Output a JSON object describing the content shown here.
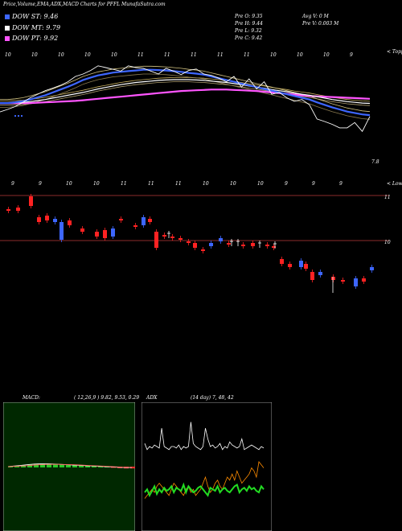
{
  "header": {
    "title": "Price,Volume,EMA,ADX,MACD Charts for PFFL MunafaSutra.com"
  },
  "legend": [
    {
      "label": "DOW ST: 9.46",
      "color": "#3d66ff"
    },
    {
      "label": "DOW MT: 9.79",
      "color": "#ffffff"
    },
    {
      "label": "DOW PT: 9.92",
      "color": "#ff55ff"
    }
  ],
  "ohlc": {
    "open": "Pre  O: 9.35",
    "high": "Pre  H: 9.44",
    "low": "Pre  L: 9.32",
    "close": "Pre  C: 9.42"
  },
  "volume_info": {
    "avg": "Avg V: 0  M",
    "pre": "Pre  V: 0.003 M"
  },
  "price_panel": {
    "top_label": "< Toppe",
    "bottom_label": "< Lowes",
    "last_value": "7.8",
    "top_digits": [
      "10",
      "10",
      "10",
      "10",
      "10",
      "11",
      "11",
      "11",
      "11",
      "11",
      "10",
      "10",
      "10",
      "9"
    ],
    "bottom_digits": [
      "9",
      "9",
      "10",
      "10",
      "11",
      "11",
      "11",
      "10",
      "10",
      "10",
      "9",
      "9",
      "9"
    ]
  },
  "candle_panel": {
    "levels": [
      "11",
      "10"
    ]
  },
  "macd": {
    "label": "MACD:",
    "params": "( 12,26,9 ) 9.82, 9.53, 0.29"
  },
  "adx": {
    "label": "ADX",
    "params": "(14  day) 7, 48, 42"
  },
  "colors": {
    "dow_st": "#3d66ff",
    "dow_mt": "#ffffff",
    "dow_pt": "#ff55ff",
    "candle_up": "#3d66ff",
    "candle_down": "#ff2222",
    "macd_bg": "#002800",
    "level_line": "#8b2b2b"
  },
  "chart_data": [
    {
      "type": "line",
      "title": "Price",
      "x": [
        1,
        2,
        3,
        4,
        5,
        6,
        7,
        8,
        9,
        10,
        11,
        12,
        13,
        14,
        15,
        16,
        17,
        18,
        19,
        20,
        21,
        22,
        23,
        24,
        25,
        26,
        27,
        28,
        29,
        30,
        31,
        32,
        33,
        34,
        35,
        36,
        37,
        38,
        39,
        40,
        41,
        42,
        43,
        44,
        45,
        46,
        47,
        48,
        49,
        50
      ],
      "series": [
        {
          "name": "",
          "values": [
            9.55,
            9.62,
            9.7,
            9.82,
            9.95,
            10.05,
            10.15,
            10.22,
            10.3,
            10.4,
            10.55,
            10.62,
            10.72,
            10.85,
            10.8,
            10.75,
            10.7,
            10.85,
            10.8,
            10.78,
            10.7,
            10.62,
            10.78,
            10.7,
            10.6,
            10.72,
            10.76,
            10.62,
            10.58,
            10.5,
            10.4,
            10.55,
            10.25,
            10.48,
            10.2,
            10.4,
            10.05,
            10.1,
            9.95,
            9.85,
            9.9,
            9.75,
            9.35,
            9.28,
            9.2,
            9.1,
            9.1,
            9.25,
            9.0,
            9.42
          ]
        },
        {
          "name": "DOW ST",
          "values": [
            9.8,
            9.8,
            9.82,
            9.85,
            9.9,
            9.96,
            10.02,
            10.1,
            10.18,
            10.26,
            10.35,
            10.45,
            10.52,
            10.58,
            10.62,
            10.66,
            10.68,
            10.7,
            10.72,
            10.74,
            10.74,
            10.73,
            10.72,
            10.7,
            10.68,
            10.65,
            10.63,
            10.6,
            10.55,
            10.5,
            10.45,
            10.4,
            10.35,
            10.3,
            10.25,
            10.2,
            10.15,
            10.1,
            10.05,
            10.0,
            9.95,
            9.9,
            9.82,
            9.75,
            9.68,
            9.62,
            9.56,
            9.52,
            9.48,
            9.46
          ]
        },
        {
          "name": "DOW MT",
          "values": [
            9.8,
            9.8,
            9.81,
            9.82,
            9.84,
            9.87,
            9.9,
            9.94,
            9.98,
            10.02,
            10.06,
            10.1,
            10.15,
            10.2,
            10.24,
            10.28,
            10.32,
            10.35,
            10.38,
            10.4,
            10.42,
            10.44,
            10.45,
            10.46,
            10.46,
            10.46,
            10.45,
            10.44,
            10.42,
            10.4,
            10.38,
            10.35,
            10.32,
            10.28,
            10.25,
            10.22,
            10.18,
            10.15,
            10.12,
            10.08,
            10.05,
            10.02,
            9.98,
            9.94,
            9.9,
            9.87,
            9.84,
            9.82,
            9.8,
            9.79
          ]
        },
        {
          "name": "DOW PT",
          "values": [
            9.8,
            9.8,
            9.8,
            9.8,
            9.8,
            9.81,
            9.82,
            9.83,
            9.84,
            9.85,
            9.86,
            9.88,
            9.9,
            9.92,
            9.94,
            9.96,
            9.98,
            10.0,
            10.02,
            10.04,
            10.06,
            10.08,
            10.1,
            10.12,
            10.14,
            10.15,
            10.16,
            10.17,
            10.18,
            10.18,
            10.18,
            10.17,
            10.16,
            10.15,
            10.14,
            10.12,
            10.1,
            10.08,
            10.06,
            10.04,
            10.02,
            10.0,
            9.99,
            9.98,
            9.97,
            9.96,
            9.95,
            9.94,
            9.93,
            9.92
          ]
        }
      ]
    },
    {
      "type": "line",
      "title": "MACD",
      "series": [
        {
          "name": "",
          "values": [
            0,
            0.02,
            0.04,
            0.06,
            0.08,
            0.09,
            0.09,
            0.08,
            0.07,
            0.06,
            0.05,
            0.04,
            0.03,
            0.02,
            0.01,
            0.0,
            -0.01,
            -0.02,
            -0.03,
            -0.03
          ]
        },
        {
          "name": "",
          "values": [
            0,
            0.01,
            0.02,
            0.03,
            0.05,
            0.06,
            0.07,
            0.07,
            0.07,
            0.06,
            0.06,
            0.05,
            0.04,
            0.03,
            0.02,
            0.01,
            0.0,
            -0.01,
            -0.02,
            -0.02
          ]
        }
      ]
    },
    {
      "type": "line",
      "title": "ADX",
      "series": [
        {
          "name": "",
          "values": [
            52,
            48,
            50,
            49,
            51,
            50,
            49,
            62,
            50,
            49,
            48,
            50,
            50,
            49,
            51,
            48,
            50,
            49,
            50,
            66,
            52,
            50,
            49,
            48,
            50,
            62,
            55,
            50,
            51,
            49,
            50,
            52,
            48,
            50,
            49,
            53,
            51,
            50,
            49,
            50,
            55,
            48,
            49,
            50,
            51,
            50,
            49,
            48,
            50,
            49
          ]
        },
        {
          "name": "",
          "values": [
            20,
            22,
            18,
            21,
            24,
            19,
            22,
            20,
            23,
            21,
            22,
            24,
            20,
            23,
            22,
            21,
            25,
            20,
            24,
            22,
            20,
            21,
            23,
            24,
            22,
            20,
            18,
            23,
            22,
            21,
            24,
            20,
            22,
            23,
            21,
            20,
            22,
            24,
            25,
            20,
            22,
            23,
            21,
            24,
            22,
            23,
            21,
            20,
            24,
            22
          ]
        },
        {
          "name": "",
          "values": [
            16,
            18,
            20,
            22,
            20,
            24,
            26,
            24,
            22,
            20,
            18,
            22,
            26,
            24,
            22,
            20,
            18,
            22,
            24,
            20,
            22,
            18,
            20,
            22,
            26,
            30,
            24,
            20,
            22,
            26,
            28,
            24,
            22,
            26,
            30,
            28,
            32,
            28,
            34,
            30,
            26,
            28,
            30,
            32,
            36,
            34,
            30,
            40,
            38,
            36
          ]
        }
      ]
    }
  ]
}
